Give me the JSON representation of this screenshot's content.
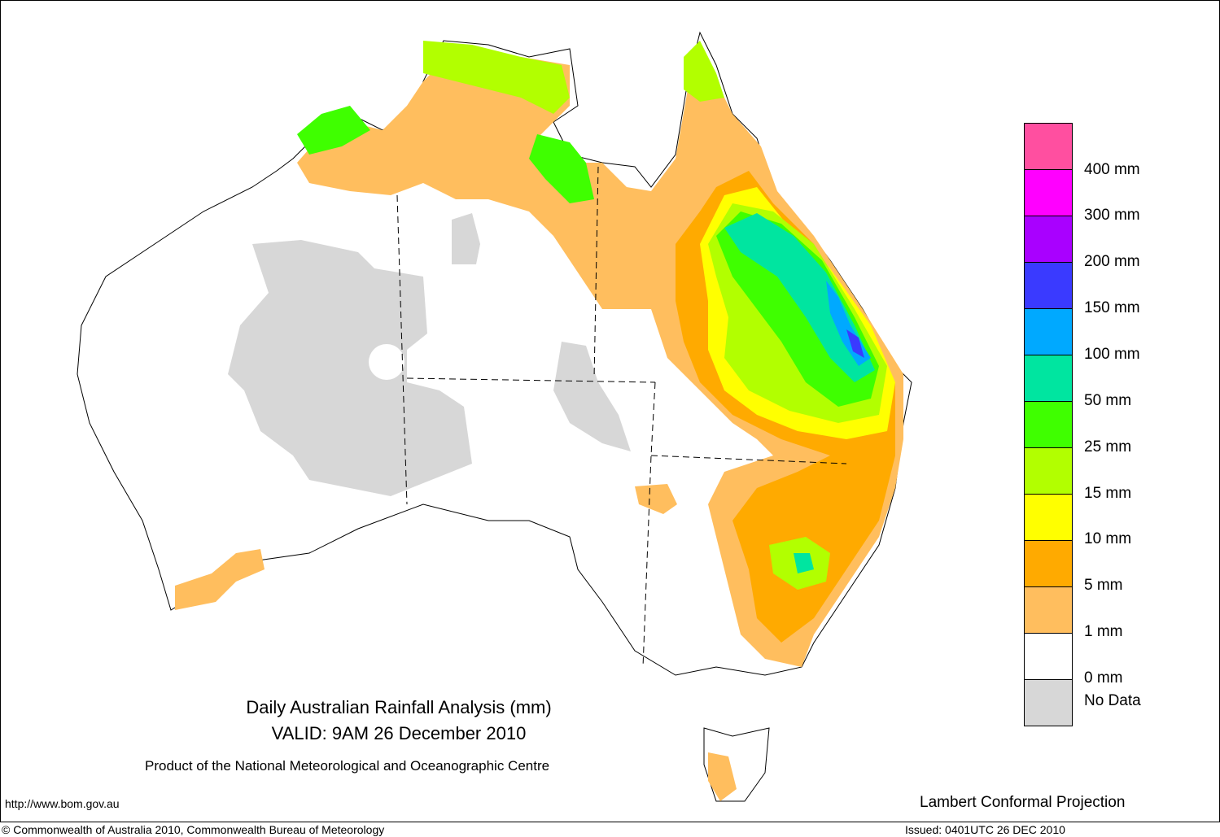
{
  "title": {
    "line1": "Daily Australian Rainfall Analysis (mm)",
    "line2": "VALID: 9AM 26 December 2010"
  },
  "product": "Product of the National Meteorological and Oceanographic Centre",
  "url": "http://www.bom.gov.au",
  "projection": "Lambert Conformal Projection",
  "copyright": "© Commonwealth of Australia 2010, Commonwealth Bureau of Meteorology",
  "issued": "Issued: 0401UTC 26 DEC 2010",
  "legend": {
    "bins": [
      {
        "color": "#ff4fa0"
      },
      {
        "color": "#ff00ff"
      },
      {
        "color": "#a900ff"
      },
      {
        "color": "#3a3aff"
      },
      {
        "color": "#00a9ff"
      },
      {
        "color": "#00e5a0"
      },
      {
        "color": "#3fff00"
      },
      {
        "color": "#b2ff00"
      },
      {
        "color": "#ffff00"
      },
      {
        "color": "#ffaa00"
      },
      {
        "color": "#ffbe5e"
      },
      {
        "color": "#ffffff"
      },
      {
        "color": "#d7d7d7"
      }
    ],
    "labels": [
      "400 mm",
      "300 mm",
      "200 mm",
      "150 mm",
      "100 mm",
      "50 mm",
      "25 mm",
      "15 mm",
      "10 mm",
      "5 mm",
      "1 mm",
      "0 mm",
      "No Data"
    ]
  }
}
